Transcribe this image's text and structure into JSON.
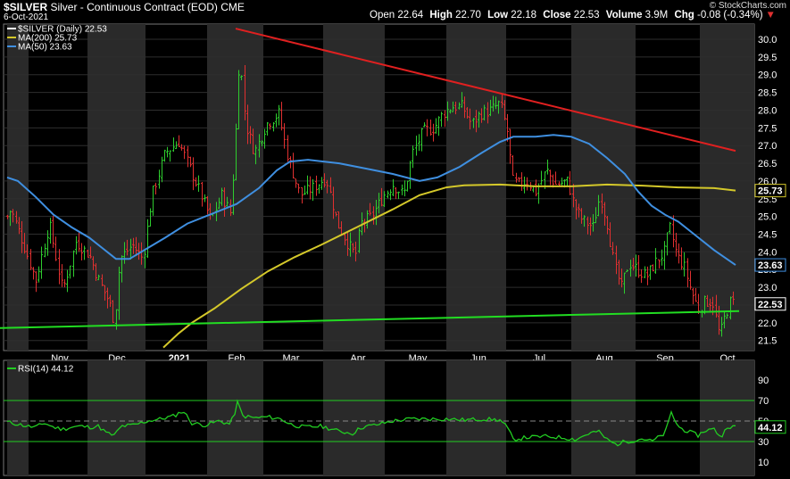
{
  "header": {
    "symbol": "$SILVER",
    "description": "Silver - Continuous Contract (EOD)",
    "exchange": "CME",
    "date": "6-Oct-2021",
    "ohlc": [
      {
        "label": "Open",
        "value": "22.64"
      },
      {
        "label": "High",
        "value": "22.70"
      },
      {
        "label": "Low",
        "value": "22.18"
      },
      {
        "label": "Close",
        "value": "22.53"
      },
      {
        "label": "Volume",
        "value": "3.9M"
      },
      {
        "label": "Chg",
        "value": "-0.08 (-0.34%)"
      }
    ],
    "watermark": "© StockCharts.com"
  },
  "colors": {
    "background": "#000000",
    "band": "#2a2a2a",
    "up": "#2ecc2e",
    "down": "#e03030",
    "ma200": "#d4c82a",
    "ma50": "#3f8fe0",
    "resistance": "#e02020",
    "support": "#22dd22",
    "rsi": "#22cc22"
  },
  "chart_data": [
    {
      "type": "candlestick",
      "legend": [
        {
          "label": "$SILVER (Daily) 22.53",
          "color": "#ffffff"
        },
        {
          "label": "MA(200) 25.73",
          "color": "#d4c82a"
        },
        {
          "label": "MA(50) 23.63",
          "color": "#3f8fe0"
        }
      ],
      "x_labels": [
        "Nov",
        "Dec",
        "2021",
        "Feb",
        "Mar",
        "Apr",
        "May",
        "Jun",
        "Jul",
        "Aug",
        "Sep",
        "Oct"
      ],
      "y_ticks": [
        "30.0",
        "29.5",
        "29.0",
        "28.5",
        "28.0",
        "27.5",
        "27.0",
        "26.5",
        "26.0",
        "25.5",
        "25.0",
        "24.5",
        "24.0",
        "23.5",
        "23.0",
        "22.5",
        "22.0",
        "21.5"
      ],
      "ylim": [
        21.2,
        30.3
      ],
      "price_path": [
        [
          0,
          24.6
        ],
        [
          12,
          25.2
        ],
        [
          25,
          24.3
        ],
        [
          40,
          23.2
        ],
        [
          55,
          24.8
        ],
        [
          70,
          22.9
        ],
        [
          85,
          24.3
        ],
        [
          100,
          23.9
        ],
        [
          112,
          23.1
        ],
        [
          122,
          22.6
        ],
        [
          128,
          22.0
        ],
        [
          134,
          23.8
        ],
        [
          148,
          24.2
        ],
        [
          160,
          23.8
        ],
        [
          170,
          25.6
        ],
        [
          185,
          26.8
        ],
        [
          200,
          27.1
        ],
        [
          212,
          26.4
        ],
        [
          222,
          25.8
        ],
        [
          236,
          24.9
        ],
        [
          248,
          25.6
        ],
        [
          258,
          25.1
        ],
        [
          263,
          26.9
        ],
        [
          268,
          29.6
        ],
        [
          275,
          27.6
        ],
        [
          285,
          26.8
        ],
        [
          298,
          27.6
        ],
        [
          312,
          27.9
        ],
        [
          322,
          26.7
        ],
        [
          336,
          25.6
        ],
        [
          350,
          25.8
        ],
        [
          365,
          26.1
        ],
        [
          378,
          24.8
        ],
        [
          390,
          24.2
        ],
        [
          398,
          23.9
        ],
        [
          404,
          24.8
        ],
        [
          416,
          25.0
        ],
        [
          430,
          25.6
        ],
        [
          440,
          25.9
        ],
        [
          452,
          25.6
        ],
        [
          462,
          26.8
        ],
        [
          474,
          27.4
        ],
        [
          486,
          27.5
        ],
        [
          496,
          27.9
        ],
        [
          506,
          28.1
        ],
        [
          518,
          28.1
        ],
        [
          528,
          27.6
        ],
        [
          538,
          27.9
        ],
        [
          550,
          28.0
        ],
        [
          560,
          28.2
        ],
        [
          568,
          27.4
        ],
        [
          574,
          26.0
        ],
        [
          580,
          25.9
        ],
        [
          590,
          26.0
        ],
        [
          600,
          25.7
        ],
        [
          612,
          26.3
        ],
        [
          622,
          25.9
        ],
        [
          636,
          26.0
        ],
        [
          643,
          25.3
        ],
        [
          652,
          24.9
        ],
        [
          664,
          24.7
        ],
        [
          672,
          25.6
        ],
        [
          680,
          24.8
        ],
        [
          688,
          23.6
        ],
        [
          696,
          23.0
        ],
        [
          704,
          23.7
        ],
        [
          714,
          23.5
        ],
        [
          724,
          23.3
        ],
        [
          734,
          23.7
        ],
        [
          744,
          24.0
        ],
        [
          750,
          24.7
        ],
        [
          758,
          23.9
        ],
        [
          766,
          23.6
        ],
        [
          774,
          22.9
        ],
        [
          782,
          22.4
        ],
        [
          790,
          22.6
        ],
        [
          798,
          22.6
        ],
        [
          806,
          21.6
        ],
        [
          812,
          22.2
        ],
        [
          818,
          22.6
        ],
        [
          824,
          22.53
        ]
      ],
      "ma200_path": [
        [
          183,
          21.3
        ],
        [
          200,
          21.7
        ],
        [
          215,
          22.0
        ],
        [
          240,
          22.4
        ],
        [
          270,
          22.95
        ],
        [
          300,
          23.45
        ],
        [
          330,
          23.85
        ],
        [
          360,
          24.2
        ],
        [
          400,
          24.7
        ],
        [
          440,
          25.2
        ],
        [
          470,
          25.6
        ],
        [
          500,
          25.82
        ],
        [
          520,
          25.88
        ],
        [
          560,
          25.9
        ],
        [
          600,
          25.85
        ],
        [
          640,
          25.85
        ],
        [
          680,
          25.9
        ],
        [
          720,
          25.87
        ],
        [
          760,
          25.82
        ],
        [
          800,
          25.8
        ],
        [
          824,
          25.73
        ]
      ],
      "ma50_path": [
        [
          8,
          26.1
        ],
        [
          20,
          26.0
        ],
        [
          40,
          25.55
        ],
        [
          60,
          25.05
        ],
        [
          80,
          24.7
        ],
        [
          100,
          24.4
        ],
        [
          115,
          24.1
        ],
        [
          130,
          23.8
        ],
        [
          145,
          23.8
        ],
        [
          165,
          24.1
        ],
        [
          185,
          24.4
        ],
        [
          210,
          24.8
        ],
        [
          240,
          25.1
        ],
        [
          265,
          25.35
        ],
        [
          290,
          25.8
        ],
        [
          310,
          26.3
        ],
        [
          325,
          26.55
        ],
        [
          345,
          26.6
        ],
        [
          380,
          26.5
        ],
        [
          410,
          26.35
        ],
        [
          440,
          26.2
        ],
        [
          470,
          26.0
        ],
        [
          490,
          26.1
        ],
        [
          515,
          26.4
        ],
        [
          540,
          26.8
        ],
        [
          560,
          27.1
        ],
        [
          575,
          27.25
        ],
        [
          600,
          27.25
        ],
        [
          620,
          27.3
        ],
        [
          640,
          27.25
        ],
        [
          660,
          27.05
        ],
        [
          680,
          26.65
        ],
        [
          700,
          26.2
        ],
        [
          715,
          25.7
        ],
        [
          730,
          25.3
        ],
        [
          745,
          25.05
        ],
        [
          760,
          24.85
        ],
        [
          780,
          24.45
        ],
        [
          800,
          24.05
        ],
        [
          824,
          23.63
        ]
      ],
      "resistance_line": [
        [
          264,
          30.3
        ],
        [
          824,
          26.85
        ]
      ],
      "support_line": [
        [
          0,
          21.85
        ],
        [
          828,
          22.33
        ]
      ],
      "last_labels": [
        {
          "text": "25.73",
          "value": 25.73,
          "color": "#d4c82a"
        },
        {
          "text": "23.63",
          "value": 23.63,
          "color": "#3f8fe0"
        },
        {
          "text": "22.53",
          "value": 22.53,
          "color": "#ffffff"
        }
      ]
    },
    {
      "type": "line",
      "legend": [
        {
          "label": "RSI(14) 44.12",
          "color": "#22cc22"
        }
      ],
      "y_ticks": [
        "90",
        "70",
        "50",
        "30",
        "10"
      ],
      "ylim": [
        0,
        100
      ],
      "reference_lines": [
        70,
        50,
        30
      ],
      "last_label": "44.12",
      "rsi_path": [
        [
          8,
          49
        ],
        [
          20,
          47
        ],
        [
          30,
          45
        ],
        [
          40,
          44
        ],
        [
          50,
          48
        ],
        [
          60,
          44
        ],
        [
          70,
          42
        ],
        [
          80,
          44
        ],
        [
          90,
          45
        ],
        [
          100,
          44
        ],
        [
          110,
          45
        ],
        [
          120,
          38
        ],
        [
          128,
          36
        ],
        [
          136,
          45
        ],
        [
          150,
          46
        ],
        [
          165,
          50
        ],
        [
          180,
          52
        ],
        [
          195,
          55
        ],
        [
          205,
          60
        ],
        [
          215,
          48
        ],
        [
          230,
          46
        ],
        [
          245,
          50
        ],
        [
          258,
          47
        ],
        [
          263,
          58
        ],
        [
          266,
          68
        ],
        [
          272,
          55
        ],
        [
          285,
          53
        ],
        [
          300,
          54
        ],
        [
          315,
          52
        ],
        [
          325,
          47
        ],
        [
          340,
          44
        ],
        [
          360,
          45
        ],
        [
          380,
          40
        ],
        [
          395,
          38
        ],
        [
          405,
          44
        ],
        [
          420,
          46
        ],
        [
          440,
          50
        ],
        [
          460,
          52
        ],
        [
          480,
          52
        ],
        [
          500,
          52
        ],
        [
          520,
          51
        ],
        [
          540,
          52
        ],
        [
          560,
          51
        ],
        [
          568,
          44
        ],
        [
          575,
          32
        ],
        [
          590,
          34
        ],
        [
          610,
          35
        ],
        [
          630,
          34
        ],
        [
          645,
          32
        ],
        [
          660,
          38
        ],
        [
          670,
          40
        ],
        [
          680,
          32
        ],
        [
          690,
          27
        ],
        [
          700,
          30
        ],
        [
          710,
          31
        ],
        [
          720,
          33
        ],
        [
          730,
          30
        ],
        [
          745,
          38
        ],
        [
          752,
          58
        ],
        [
          760,
          44
        ],
        [
          770,
          40
        ],
        [
          782,
          36
        ],
        [
          790,
          41
        ],
        [
          800,
          42
        ],
        [
          808,
          34
        ],
        [
          815,
          45
        ],
        [
          824,
          44
        ]
      ]
    }
  ]
}
